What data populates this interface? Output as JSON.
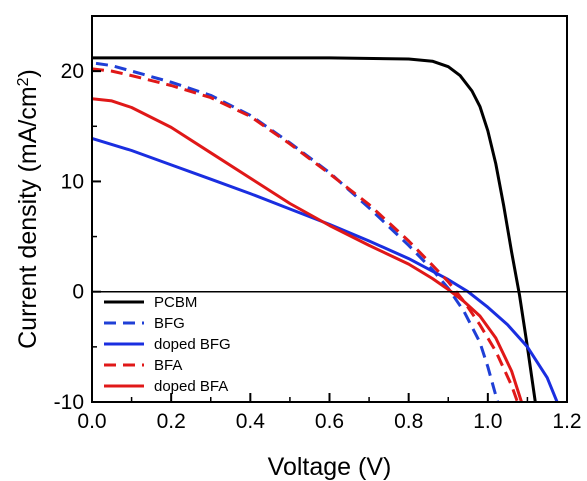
{
  "chart_data": {
    "type": "line",
    "xlabel": "Voltage (V)",
    "ylabel": "Current density (mA/cm",
    "ylabel_superscript": "2",
    "ylabel_suffix": ")",
    "xlim": [
      0.0,
      1.2
    ],
    "ylim": [
      -10,
      25
    ],
    "x_ticks": [
      0.0,
      0.2,
      0.4,
      0.6,
      0.8,
      1.0,
      1.2
    ],
    "x_tick_labels": [
      "0.0",
      "0.2",
      "0.4",
      "0.6",
      "0.8",
      "1.0",
      "1.2"
    ],
    "y_ticks": [
      -10,
      0,
      10,
      20
    ],
    "y_tick_labels": [
      "-10",
      "0",
      "10",
      "20"
    ],
    "zero_line": true,
    "grid": false,
    "legend_position": "bottom-left",
    "series": [
      {
        "name": "PCBM",
        "color": "#000000",
        "dash": "solid",
        "points": [
          [
            0.0,
            21.2
          ],
          [
            0.2,
            21.2
          ],
          [
            0.4,
            21.2
          ],
          [
            0.6,
            21.2
          ],
          [
            0.8,
            21.1
          ],
          [
            0.86,
            20.9
          ],
          [
            0.9,
            20.4
          ],
          [
            0.93,
            19.6
          ],
          [
            0.96,
            18.2
          ],
          [
            0.98,
            16.8
          ],
          [
            1.0,
            14.6
          ],
          [
            1.02,
            11.6
          ],
          [
            1.04,
            7.8
          ],
          [
            1.06,
            3.6
          ],
          [
            1.08,
            -0.3
          ],
          [
            1.1,
            -5.0
          ],
          [
            1.12,
            -10.0
          ]
        ]
      },
      {
        "name": "BFG",
        "color": "#1f3fd6",
        "dash": "dashed",
        "points": [
          [
            0.01,
            20.7
          ],
          [
            0.05,
            20.5
          ],
          [
            0.1,
            20.0
          ],
          [
            0.2,
            19.0
          ],
          [
            0.3,
            17.8
          ],
          [
            0.4,
            16.0
          ],
          [
            0.5,
            13.5
          ],
          [
            0.6,
            10.8
          ],
          [
            0.7,
            7.6
          ],
          [
            0.8,
            4.2
          ],
          [
            0.86,
            2.0
          ],
          [
            0.9,
            0.3
          ],
          [
            0.94,
            -1.8
          ],
          [
            0.98,
            -4.6
          ],
          [
            1.0,
            -6.8
          ],
          [
            1.02,
            -9.4
          ],
          [
            1.025,
            -10.0
          ]
        ]
      },
      {
        "name": "doped BFG",
        "color": "#1a2ee0",
        "dash": "solid",
        "points": [
          [
            0.0,
            13.9
          ],
          [
            0.1,
            12.8
          ],
          [
            0.2,
            11.5
          ],
          [
            0.3,
            10.2
          ],
          [
            0.4,
            8.9
          ],
          [
            0.5,
            7.5
          ],
          [
            0.6,
            6.1
          ],
          [
            0.7,
            4.6
          ],
          [
            0.8,
            3.0
          ],
          [
            0.9,
            1.1
          ],
          [
            0.95,
            0.0
          ],
          [
            1.0,
            -1.4
          ],
          [
            1.05,
            -3.0
          ],
          [
            1.1,
            -5.0
          ],
          [
            1.15,
            -7.8
          ],
          [
            1.175,
            -10.0
          ]
        ]
      },
      {
        "name": "BFA",
        "color": "#e01818",
        "dash": "dashed",
        "points": [
          [
            0.0,
            20.2
          ],
          [
            0.05,
            20.0
          ],
          [
            0.1,
            19.6
          ],
          [
            0.2,
            18.7
          ],
          [
            0.3,
            17.6
          ],
          [
            0.4,
            15.9
          ],
          [
            0.5,
            13.4
          ],
          [
            0.6,
            10.7
          ],
          [
            0.7,
            7.9
          ],
          [
            0.8,
            4.6
          ],
          [
            0.86,
            2.4
          ],
          [
            0.9,
            0.9
          ],
          [
            0.94,
            -0.9
          ],
          [
            0.98,
            -3.0
          ],
          [
            1.02,
            -5.4
          ],
          [
            1.06,
            -8.5
          ],
          [
            1.075,
            -10.0
          ]
        ]
      },
      {
        "name": "doped BFA",
        "color": "#e01818",
        "dash": "solid",
        "points": [
          [
            0.0,
            17.5
          ],
          [
            0.05,
            17.3
          ],
          [
            0.1,
            16.7
          ],
          [
            0.2,
            14.9
          ],
          [
            0.3,
            12.6
          ],
          [
            0.4,
            10.3
          ],
          [
            0.5,
            8.0
          ],
          [
            0.6,
            6.0
          ],
          [
            0.7,
            4.2
          ],
          [
            0.8,
            2.5
          ],
          [
            0.86,
            1.2
          ],
          [
            0.9,
            0.2
          ],
          [
            0.94,
            -0.9
          ],
          [
            0.98,
            -2.2
          ],
          [
            1.02,
            -4.2
          ],
          [
            1.06,
            -7.2
          ],
          [
            1.085,
            -10.0
          ]
        ]
      }
    ]
  }
}
